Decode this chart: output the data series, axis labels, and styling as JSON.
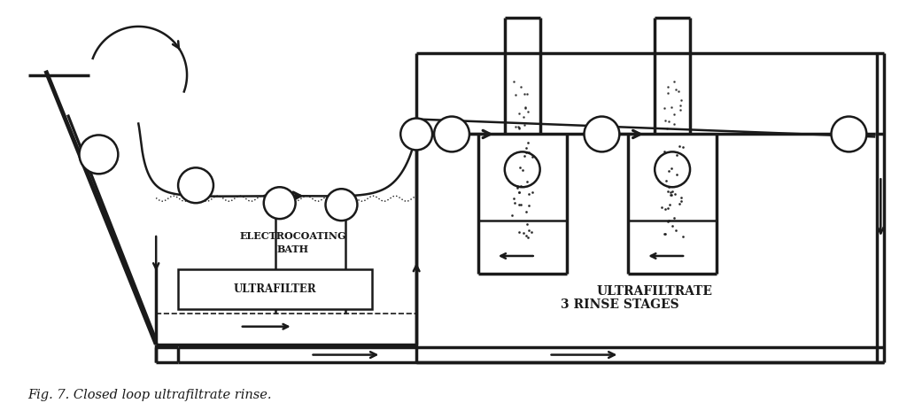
{
  "title": "Fig. 7. Closed loop ultrafiltrate rinse.",
  "bg_color": "#ffffff",
  "line_color": "#1a1a1a",
  "text_color": "#1a1a1a",
  "labels": {
    "electrocoating": "ELECTROCOATING",
    "bath": "BATH",
    "ultrafilter": "ULTRAFILTER",
    "ultrafiltrate": "ULTRAFILTRATE",
    "rinse_stages": "3 RINSE STAGES"
  }
}
